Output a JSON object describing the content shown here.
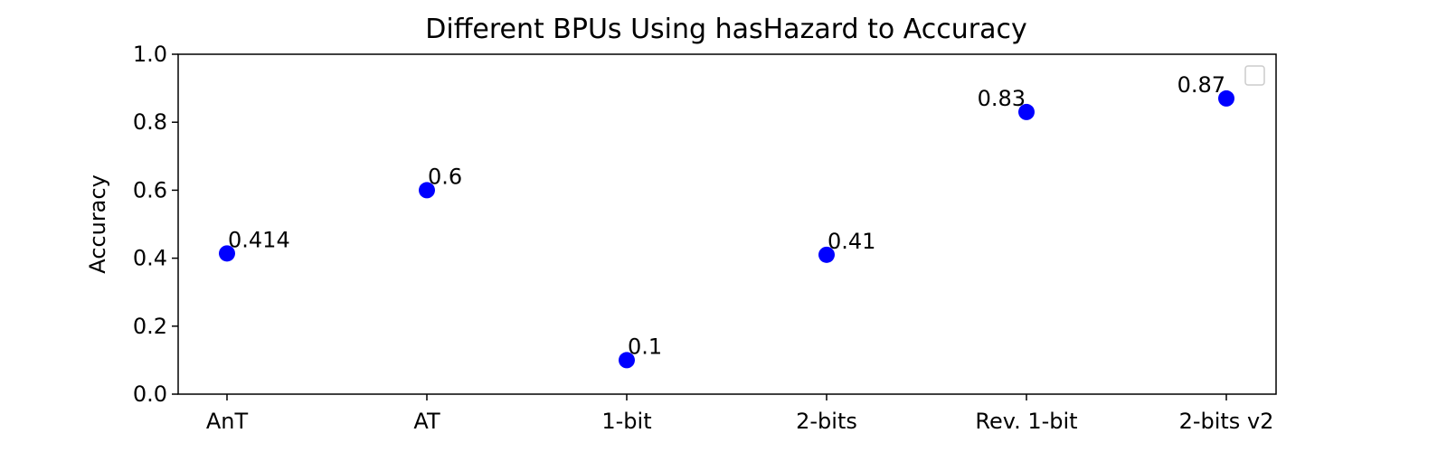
{
  "chart_data": {
    "type": "scatter",
    "title": "Different BPUs Using hasHazard to Accuracy",
    "xlabel": "",
    "ylabel": "Accuracy",
    "categories": [
      "AnT",
      "AT",
      "1-bit",
      "2-bits",
      "Rev. 1-bit",
      "2-bits v2"
    ],
    "values": [
      0.414,
      0.6,
      0.1,
      0.41,
      0.83,
      0.87
    ],
    "data_labels": [
      "0.414",
      "0.6",
      "0.1",
      "0.41",
      "0.83",
      "0.87"
    ],
    "ylim": [
      0.0,
      1.0
    ],
    "yticks": [
      "0.0",
      "0.2",
      "0.4",
      "0.6",
      "0.8",
      "1.0"
    ],
    "grid": false,
    "legend": {
      "placement": "top-right",
      "entries": []
    },
    "colors": {
      "marker": "#0000ff",
      "axes": "#000000",
      "legend_border": "#cccccc"
    }
  }
}
